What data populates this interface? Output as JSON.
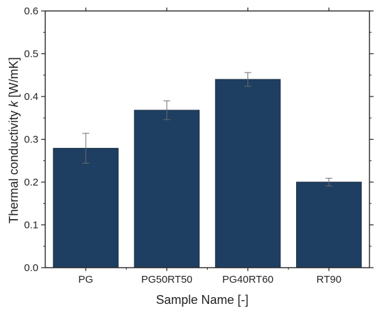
{
  "chart_data": {
    "type": "bar",
    "title": "",
    "xlabel": "Sample Name [-]",
    "ylabel_main": "Thermal conductivity ",
    "ylabel_italic": "k",
    "ylabel_unit": " [W/mK]",
    "categories": [
      "PG",
      "PG50RT50",
      "PG40RT60",
      "RT90"
    ],
    "values": [
      0.279,
      0.368,
      0.44,
      0.2
    ],
    "errors": [
      0.035,
      0.022,
      0.016,
      0.009
    ],
    "ylim": [
      0.0,
      0.6
    ],
    "yticks": [
      "0.0",
      "0.1",
      "0.2",
      "0.3",
      "0.4",
      "0.5",
      "0.6"
    ],
    "grid": false,
    "bar_color": "#1f3f62",
    "axis_color": "#222222",
    "error_color": "#6b6b6b"
  }
}
